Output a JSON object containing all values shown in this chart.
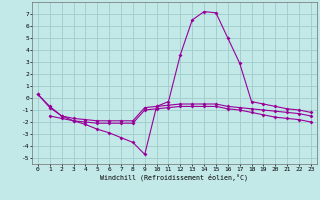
{
  "xlabel": "Windchill (Refroidissement éolien,°C)",
  "background_color": "#c2e8e8",
  "grid_color": "#a0cccc",
  "line_color": "#990099",
  "xlim": [
    -0.5,
    23.5
  ],
  "ylim": [
    -5.5,
    8.0
  ],
  "xticks": [
    0,
    1,
    2,
    3,
    4,
    5,
    6,
    7,
    8,
    9,
    10,
    11,
    12,
    13,
    14,
    15,
    16,
    17,
    18,
    19,
    20,
    21,
    22,
    23
  ],
  "yticks": [
    -5,
    -4,
    -3,
    -2,
    -1,
    0,
    1,
    2,
    3,
    4,
    5,
    6,
    7
  ],
  "c1_x": [
    0,
    1,
    2,
    3,
    4,
    5,
    6,
    7,
    8,
    9,
    10,
    11,
    12,
    13,
    14,
    15,
    16,
    17,
    18,
    19,
    20,
    21,
    22,
    23
  ],
  "c1_y": [
    0.3,
    -0.7,
    -1.5,
    -1.9,
    -2.2,
    -2.6,
    -2.9,
    -3.3,
    -3.7,
    -4.7,
    -0.7,
    -0.3,
    3.6,
    6.5,
    7.2,
    7.1,
    5.0,
    2.9,
    -0.3,
    -0.5,
    -0.7,
    -0.9,
    -1.0,
    -1.2
  ],
  "c2_x": [
    0,
    1,
    2,
    3,
    4,
    5,
    6,
    7,
    8,
    9,
    10,
    11,
    12,
    13,
    14,
    15,
    16,
    17,
    18,
    19,
    20,
    21,
    22,
    23
  ],
  "c2_y": [
    0.3,
    -0.8,
    -1.5,
    -1.7,
    -1.8,
    -1.9,
    -1.9,
    -1.9,
    -1.9,
    -0.8,
    -0.7,
    -0.6,
    -0.5,
    -0.5,
    -0.5,
    -0.5,
    -0.7,
    -0.8,
    -0.9,
    -1.0,
    -1.1,
    -1.2,
    -1.3,
    -1.5
  ],
  "c3_x": [
    1,
    2,
    3,
    4,
    5,
    6,
    7,
    8,
    9,
    10,
    11,
    12,
    13,
    14,
    15,
    16,
    17,
    18,
    19,
    20,
    21,
    22,
    23
  ],
  "c3_y": [
    -1.5,
    -1.7,
    -1.9,
    -2.0,
    -2.1,
    -2.1,
    -2.1,
    -2.1,
    -1.0,
    -0.9,
    -0.8,
    -0.7,
    -0.7,
    -0.7,
    -0.7,
    -0.9,
    -1.0,
    -1.2,
    -1.4,
    -1.6,
    -1.7,
    -1.8,
    -2.0
  ]
}
